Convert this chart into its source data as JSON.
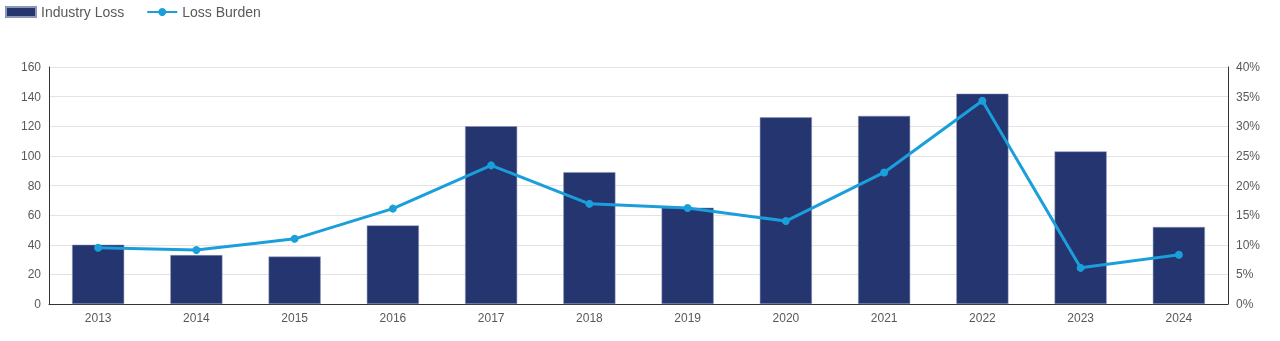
{
  "chart_data": {
    "type": "bar",
    "categories": [
      "2013",
      "2014",
      "2015",
      "2016",
      "2017",
      "2018",
      "2019",
      "2020",
      "2021",
      "2022",
      "2023",
      "2024"
    ],
    "series": [
      {
        "name": "Industry Loss",
        "color": "#253570",
        "values": [
          40,
          33,
          32,
          53,
          120,
          89,
          65,
          126,
          127,
          142,
          103,
          52
        ]
      },
      {
        "name": "Loss Burden",
        "type": "line",
        "axis": "y2",
        "color": "#1a9fdb",
        "marker": "circle",
        "values": [
          9.5,
          9.1,
          11.0,
          16.1,
          23.4,
          16.9,
          16.2,
          14.0,
          22.2,
          34.3,
          6.1,
          8.3
        ]
      }
    ],
    "ylim": [
      0,
      160
    ],
    "yticks": [
      0,
      20,
      40,
      60,
      80,
      100,
      120,
      140,
      160
    ],
    "y2lim": [
      0,
      40
    ],
    "y2ticks": [
      {
        "value": 0,
        "label": "0%"
      },
      {
        "value": 5,
        "label": "5%"
      },
      {
        "value": 10,
        "label": "10%"
      },
      {
        "value": 15,
        "label": "15%"
      },
      {
        "value": 20,
        "label": "20%"
      },
      {
        "value": 25,
        "label": "25%"
      },
      {
        "value": 30,
        "label": "30%"
      },
      {
        "value": 35,
        "label": "35%"
      },
      {
        "value": 40,
        "label": "40%"
      }
    ],
    "grid": "y",
    "legend": "top left"
  }
}
